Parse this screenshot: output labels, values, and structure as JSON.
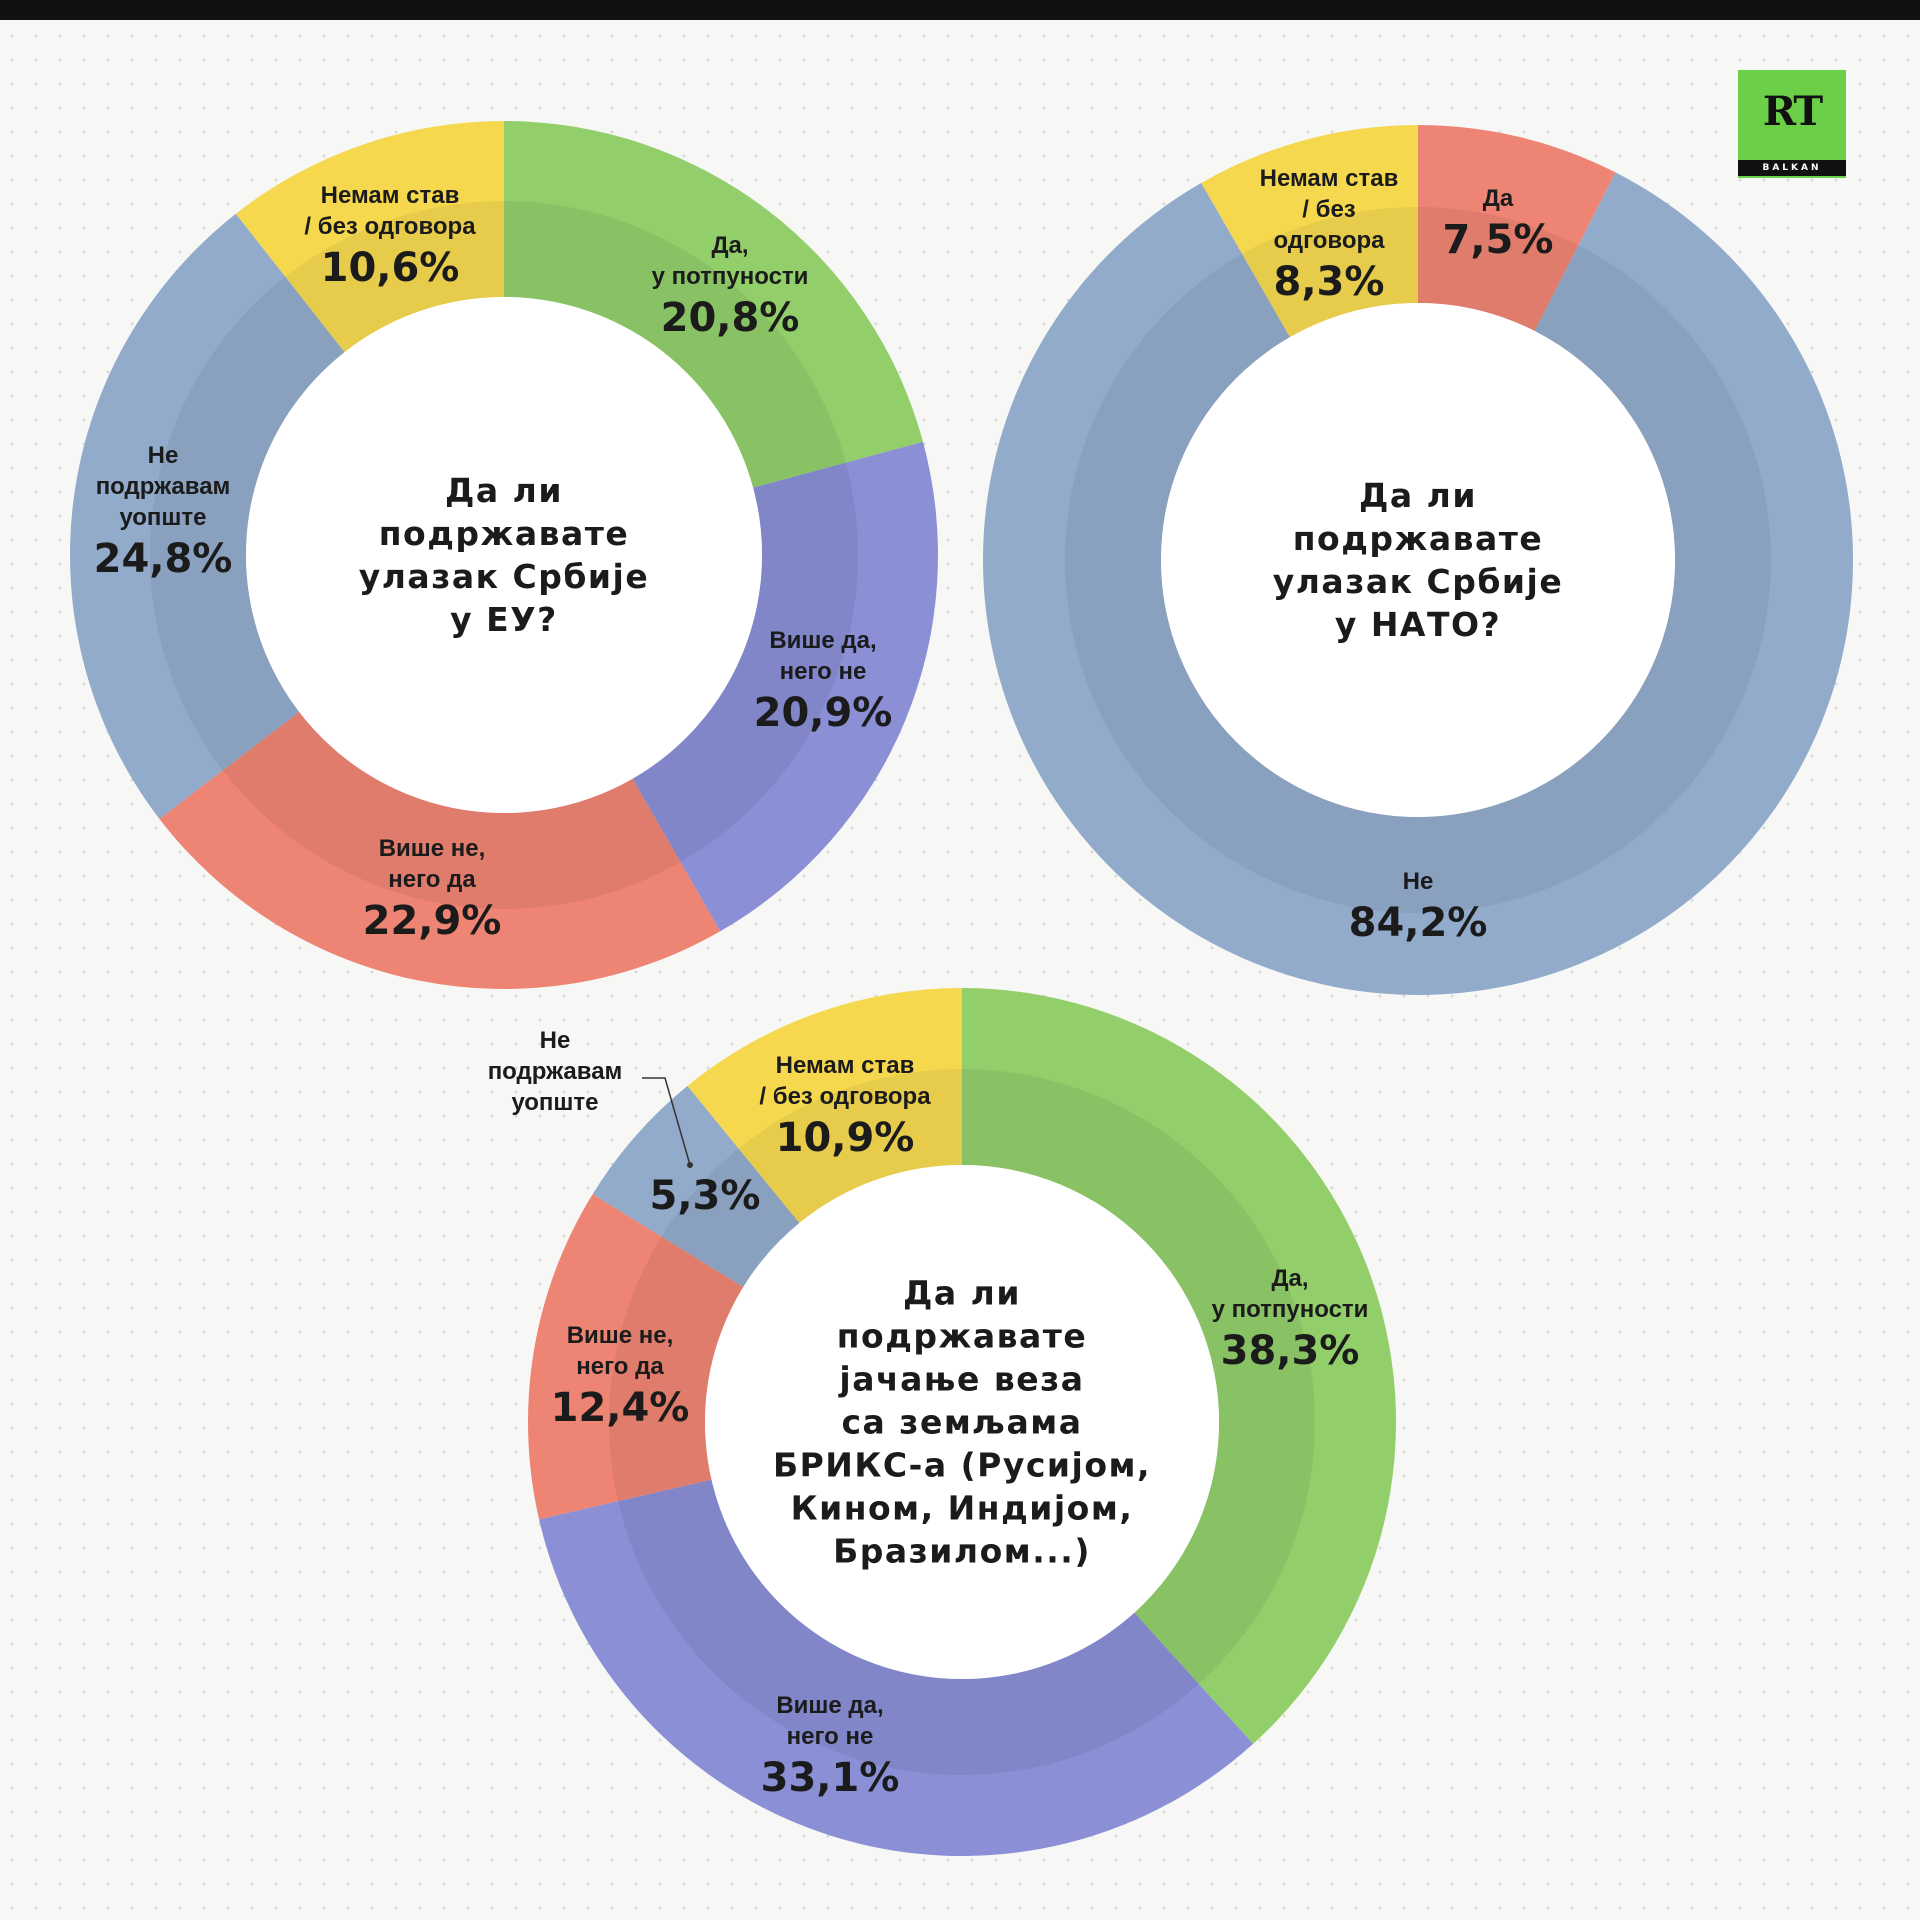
{
  "logo": {
    "text": "RT",
    "sub": "BALKAN"
  },
  "charts": {
    "eu": {
      "question": "Да ли подржавате улазак Србије у ЕУ?",
      "q_lines": [
        "Да ли",
        "подржавате",
        "улазак Србије",
        "у ЕУ?"
      ],
      "segments": [
        {
          "label": [
            "Да,",
            "у потпуности"
          ],
          "value_text": "20,8%",
          "value": 20.8,
          "color": "#92cf6b"
        },
        {
          "label": [
            "Више да,",
            "него не"
          ],
          "value_text": "20,9%",
          "value": 20.9,
          "color": "#8a8fd6"
        },
        {
          "label": [
            "Више не,",
            "него да"
          ],
          "value_text": "22,9%",
          "value": 22.9,
          "color": "#ee8473"
        },
        {
          "label": [
            "Не",
            "подржавам",
            "уопште"
          ],
          "value_text": "24,8%",
          "value": 24.8,
          "color": "#92abcb"
        },
        {
          "label": [
            "Немам став",
            "/ без одговора"
          ],
          "value_text": "10,6%",
          "value": 10.6,
          "color": "#f6d84f"
        }
      ]
    },
    "nato": {
      "question": "Да ли подржавате улазак Србије у НАТО?",
      "q_lines": [
        "Да ли",
        "подржавате",
        "улазак Србије",
        "у НАТО?"
      ],
      "segments": [
        {
          "label": [
            "Да"
          ],
          "value_text": "7,5%",
          "value": 7.5,
          "color": "#ee8473"
        },
        {
          "label": [
            "Не"
          ],
          "value_text": "84,2%",
          "value": 84.2,
          "color": "#92abcb"
        },
        {
          "label": [
            "Немам став",
            "/ без",
            "одговора"
          ],
          "value_text": "8,3%",
          "value": 8.3,
          "color": "#f6d84f"
        }
      ]
    },
    "brics": {
      "question": "Да ли подржавате јачање веза са земљама БРИКС-а (Русијом, Кином, Индијом, Бразилом...)",
      "q_lines": [
        "Да ли",
        "подржавате",
        "јачање веза",
        "са земљама",
        "БРИКС-а (Русијом,",
        "Кином, Индијом,",
        "Бразилом...)"
      ],
      "segments": [
        {
          "label": [
            "Да,",
            "у потпуности"
          ],
          "value_text": "38,3%",
          "value": 38.3,
          "color": "#92cf6b"
        },
        {
          "label": [
            "Више да,",
            "него не"
          ],
          "value_text": "33,1%",
          "value": 33.1,
          "color": "#8a8fd6"
        },
        {
          "label": [
            "Више не,",
            "него да"
          ],
          "value_text": "12,4%",
          "value": 12.4,
          "color": "#ee8473"
        },
        {
          "label": [
            "Не",
            "подржавам",
            "уопште"
          ],
          "value_text": "5,3%",
          "value": 5.3,
          "color": "#92abcb"
        },
        {
          "label": [
            "Немам став",
            "/ без одговора"
          ],
          "value_text": "10,9%",
          "value": 10.9,
          "color": "#f6d84f"
        }
      ]
    }
  },
  "chart_data": [
    {
      "type": "pie",
      "title": "Да ли подржавате улазак Србије у ЕУ?",
      "categories": [
        "Да, у потпуности",
        "Више да, него не",
        "Више не, него да",
        "Не подржавам уопште",
        "Немам став / без одговора"
      ],
      "values": [
        20.8,
        20.9,
        22.9,
        24.8,
        10.6
      ],
      "unit": "%"
    },
    {
      "type": "pie",
      "title": "Да ли подржавате улазак Србије у НАТО?",
      "categories": [
        "Да",
        "Не",
        "Немам став / без одговора"
      ],
      "values": [
        7.5,
        84.2,
        8.3
      ],
      "unit": "%"
    },
    {
      "type": "pie",
      "title": "Да ли подржавате јачање веза са земљама БРИКС-а (Русијом, Кином, Индијом, Бразилом...)",
      "categories": [
        "Да, у потпуности",
        "Више да, него не",
        "Више не, него да",
        "Не подржавам уопште",
        "Немам став / без одговора"
      ],
      "values": [
        38.3,
        33.1,
        12.4,
        5.3,
        10.9
      ],
      "unit": "%"
    }
  ]
}
